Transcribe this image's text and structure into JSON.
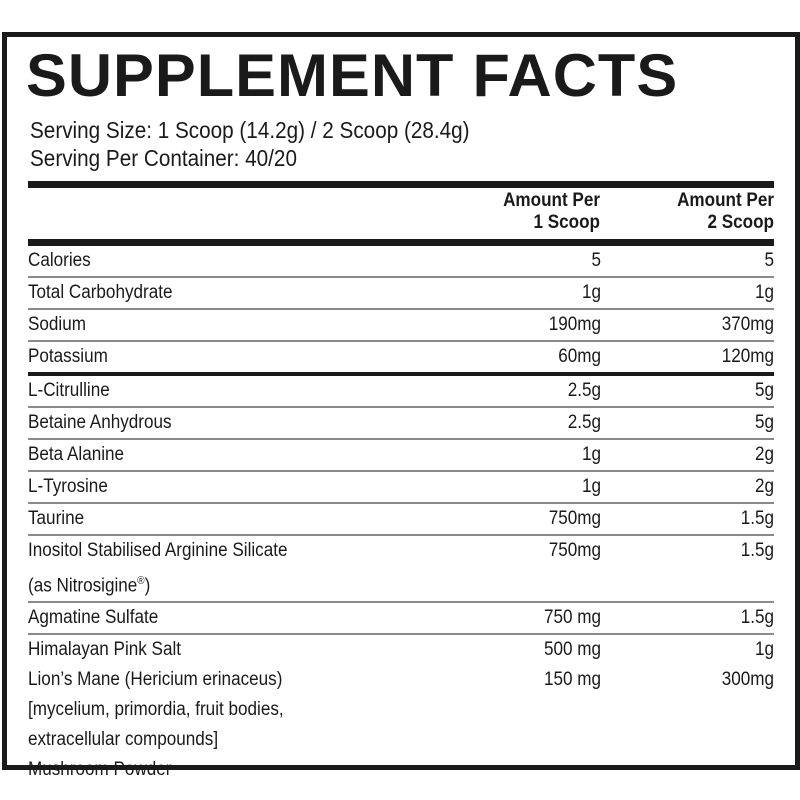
{
  "title": "SUPPLEMENT FACTS",
  "serving_size": "Serving Size: 1 Scoop (14.2g) / 2 Scoop (28.4g)",
  "servings_per_container": "Serving Per Container: 40/20",
  "columns": {
    "col1_line1": "Amount Per",
    "col1_line2": "1 Scoop",
    "col2_line1": "Amount Per",
    "col2_line2": "2 Scoop"
  },
  "rows": [
    {
      "name": "Calories",
      "per_1_scoop": "5",
      "per_2_scoop": "5"
    },
    {
      "name": "Total Carbohydrate",
      "per_1_scoop": "1g",
      "per_2_scoop": "1g"
    },
    {
      "name": "Sodium",
      "per_1_scoop": "190mg",
      "per_2_scoop": "370mg"
    },
    {
      "name": "Potassium",
      "per_1_scoop": "60mg",
      "per_2_scoop": "120mg",
      "separator": "thick"
    },
    {
      "name": "L-Citrulline",
      "per_1_scoop": "2.5g",
      "per_2_scoop": "5g"
    },
    {
      "name": "Betaine Anhydrous",
      "per_1_scoop": "2.5g",
      "per_2_scoop": "5g"
    },
    {
      "name": "Beta Alanine",
      "per_1_scoop": "1g",
      "per_2_scoop": "2g"
    },
    {
      "name": "L-Tyrosine",
      "per_1_scoop": "1g",
      "per_2_scoop": "2g"
    },
    {
      "name": "Taurine",
      "per_1_scoop": "750mg",
      "per_2_scoop": "1.5g"
    },
    {
      "name": "Inositol Stabilised Arginine Silicate\n(as Nitrosigine®)",
      "per_1_scoop": "750mg",
      "per_2_scoop": "1.5g"
    },
    {
      "name": "Agmatine Sulfate",
      "per_1_scoop": "750 mg",
      "per_2_scoop": "1.5g"
    },
    {
      "name": "Himalayan Pink Salt",
      "per_1_scoop": "500 mg",
      "per_2_scoop": "1g",
      "separator": "none"
    },
    {
      "name": "Lion’s Mane (Hericium erinaceus)\n[mycelium, primordia, fruit bodies,\nextracellular compounds]\nMushroom Powder",
      "per_1_scoop": "150 mg",
      "per_2_scoop": "300mg",
      "separator": "none"
    }
  ]
}
